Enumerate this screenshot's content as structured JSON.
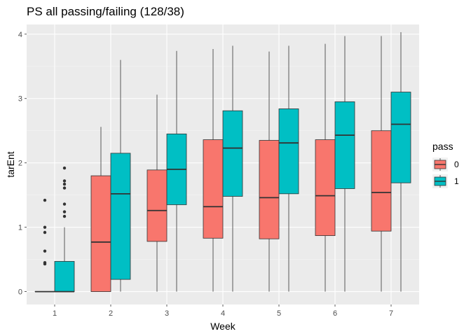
{
  "chart_data": {
    "type": "boxplot",
    "title": "PS all passing/failing (128/38)",
    "xlabel": "Week",
    "ylabel": "tarEnt",
    "categories": [
      "1",
      "2",
      "3",
      "4",
      "5",
      "6",
      "7"
    ],
    "y_ticks": [
      "0",
      "1",
      "2",
      "3",
      "4"
    ],
    "ylim": [
      -0.2,
      4.15
    ],
    "grid": true,
    "legend_title": "pass",
    "legend_position": "right",
    "series": [
      {
        "name": "0",
        "color": "#F8766D",
        "boxes": [
          {
            "whisker_low": 0,
            "q1": 0,
            "median": 0,
            "q3": 0,
            "whisker_high": 0,
            "outliers": [
              0.43,
              0.45,
              0.63,
              0.92,
              1.0,
              1.42
            ]
          },
          {
            "whisker_low": 0,
            "q1": 0,
            "median": 0.77,
            "q3": 1.8,
            "whisker_high": 2.56,
            "outliers": []
          },
          {
            "whisker_low": 0,
            "q1": 0.78,
            "median": 1.26,
            "q3": 1.89,
            "whisker_high": 3.06,
            "outliers": []
          },
          {
            "whisker_low": 0,
            "q1": 0.83,
            "median": 1.32,
            "q3": 2.36,
            "whisker_high": 3.77,
            "outliers": []
          },
          {
            "whisker_low": 0,
            "q1": 0.82,
            "median": 1.46,
            "q3": 2.35,
            "whisker_high": 3.73,
            "outliers": []
          },
          {
            "whisker_low": 0,
            "q1": 0.87,
            "median": 1.49,
            "q3": 2.36,
            "whisker_high": 3.85,
            "outliers": []
          },
          {
            "whisker_low": 0,
            "q1": 0.94,
            "median": 1.54,
            "q3": 2.5,
            "whisker_high": 3.97,
            "outliers": []
          }
        ]
      },
      {
        "name": "1",
        "color": "#00BFC4",
        "boxes": [
          {
            "whisker_low": 0,
            "q1": 0,
            "median": 0,
            "q3": 0.47,
            "whisker_high": 1.0,
            "outliers": [
              1.17,
              1.24,
              1.36,
              1.61,
              1.67,
              1.72,
              1.92
            ]
          },
          {
            "whisker_low": 0,
            "q1": 0.19,
            "median": 1.52,
            "q3": 2.15,
            "whisker_high": 3.6,
            "outliers": []
          },
          {
            "whisker_low": 0,
            "q1": 1.35,
            "median": 1.9,
            "q3": 2.45,
            "whisker_high": 3.74,
            "outliers": []
          },
          {
            "whisker_low": 0,
            "q1": 1.48,
            "median": 2.23,
            "q3": 2.81,
            "whisker_high": 3.82,
            "outliers": []
          },
          {
            "whisker_low": 0,
            "q1": 1.52,
            "median": 2.31,
            "q3": 2.84,
            "whisker_high": 3.82,
            "outliers": []
          },
          {
            "whisker_low": 0,
            "q1": 1.6,
            "median": 2.43,
            "q3": 2.95,
            "whisker_high": 3.97,
            "outliers": []
          },
          {
            "whisker_low": 0,
            "q1": 1.69,
            "median": 2.6,
            "q3": 3.1,
            "whisker_high": 4.03,
            "outliers": []
          }
        ]
      }
    ]
  },
  "colors": {
    "panel_background": "#EBEBEB",
    "grid_major": "#FFFFFF",
    "box_outline": "#333333"
  }
}
